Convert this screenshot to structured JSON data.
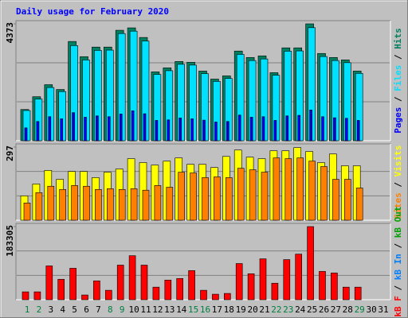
{
  "title": "Daily usage for February 2020",
  "chart_data": [
    {
      "type": "bar",
      "ylim": [
        0,
        4373
      ],
      "yticks": [
        4373
      ],
      "series": [
        {
          "name": "Hits",
          "color": "#008060",
          "values": [
            1168,
            1647,
            2097,
            1917,
            3714,
            3145,
            3504,
            3504,
            4133,
            4223,
            3864,
            2576,
            2726,
            2965,
            2935,
            2606,
            2306,
            2426,
            3355,
            3115,
            3175,
            2546,
            3475,
            3475,
            4373,
            3265,
            3115,
            3025,
            2606,
            null,
            null
          ]
        },
        {
          "name": "Files",
          "color": "#00e0ff",
          "values": [
            1130,
            1560,
            1990,
            1840,
            3560,
            3020,
            3380,
            3390,
            4010,
            4100,
            3730,
            2480,
            2620,
            2860,
            2830,
            2510,
            2220,
            2330,
            3230,
            3000,
            3060,
            2450,
            3350,
            3360,
            4230,
            3150,
            3000,
            2920,
            2520,
            null,
            null
          ]
        },
        {
          "name": "Pages",
          "color": "#0000ff",
          "values": [
            480,
            720,
            900,
            820,
            1050,
            880,
            930,
            900,
            1000,
            1120,
            1010,
            760,
            780,
            850,
            820,
            770,
            700,
            720,
            960,
            880,
            900,
            760,
            930,
            950,
            1150,
            900,
            860,
            840,
            760,
            null,
            null
          ]
        }
      ]
    },
    {
      "type": "bar",
      "ylim": [
        0,
        297
      ],
      "yticks": [
        297
      ],
      "series": [
        {
          "name": "Visits",
          "color": "#ffff00",
          "values": [
            99,
            147,
            202,
            166,
            198,
            198,
            173,
            195,
            208,
            250,
            234,
            224,
            240,
            253,
            227,
            227,
            214,
            259,
            285,
            256,
            250,
            282,
            282,
            295,
            279,
            234,
            269,
            221,
            221,
            null,
            null
          ]
        },
        {
          "name": "Sites",
          "color": "#ff8000",
          "values": [
            70,
            112,
            138,
            125,
            141,
            138,
            125,
            128,
            125,
            128,
            122,
            141,
            134,
            195,
            192,
            173,
            176,
            173,
            211,
            205,
            195,
            253,
            250,
            253,
            240,
            218,
            166,
            166,
            131,
            null,
            null
          ]
        }
      ]
    },
    {
      "type": "bar",
      "ylim": [
        0,
        183305
      ],
      "yticks": [
        183305
      ],
      "categories": [
        "1",
        "2",
        "3",
        "4",
        "5",
        "6",
        "7",
        "8",
        "9",
        "10",
        "11",
        "12",
        "13",
        "14",
        "15",
        "16",
        "17",
        "18",
        "19",
        "20",
        "21",
        "22",
        "23",
        "24",
        "25",
        "26",
        "27",
        "28",
        "29",
        "30",
        "31"
      ],
      "category_colors": [
        "#008040",
        "#008040",
        "#000000",
        "#000000",
        "#000000",
        "#000000",
        "#000000",
        "#008040",
        "#008040",
        "#000000",
        "#000000",
        "#000000",
        "#000000",
        "#000000",
        "#008040",
        "#008040",
        "#000000",
        "#000000",
        "#000000",
        "#000000",
        "#000000",
        "#008040",
        "#008040",
        "#000000",
        "#000000",
        "#000000",
        "#000000",
        "#000000",
        "#008040",
        "#000000",
        "#000000"
      ],
      "series": [
        {
          "name": "kB F",
          "color": "#ff0000",
          "values": [
            19710,
            19710,
            84753,
            51246,
            78840,
            11826,
            47304,
            23652,
            86724,
            110376,
            86724,
            31536,
            49275,
            53217,
            72927,
            23652,
            13797,
            15768,
            90666,
            65043,
            102492,
            41391,
            100521,
            114318,
            183305,
            70956,
            67014,
            31536,
            31536,
            null,
            null
          ]
        }
      ],
      "legend_extra": [
        {
          "name": "kB In",
          "color": "#0080ff"
        },
        {
          "name": "kB Out",
          "color": "#00a000"
        }
      ]
    }
  ]
}
